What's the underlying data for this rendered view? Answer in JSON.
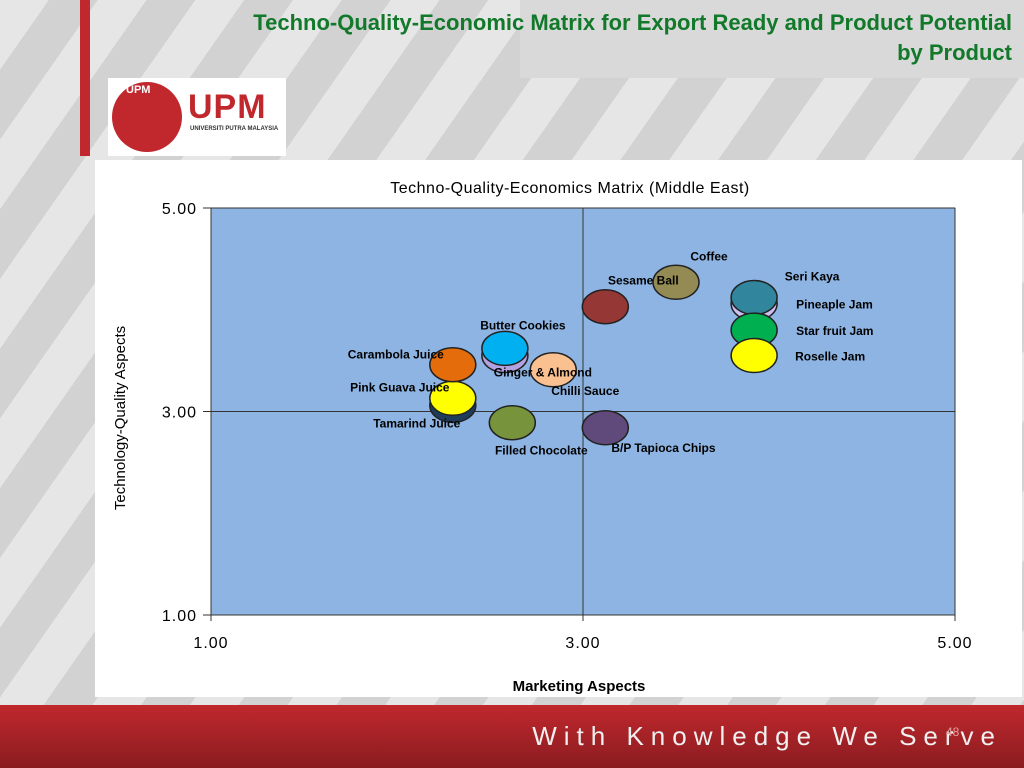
{
  "slide": {
    "title": "Techno-Quality-Economic Matrix for Export Ready and Product Potential by Product",
    "logo_emblem": "UPM",
    "logo_text": "UPM",
    "logo_subtext": "UNIVERSITI PUTRA MALAYSIA",
    "footer": "With Knowledge We Serve",
    "page_number": "48"
  },
  "chart_data": {
    "type": "scatter",
    "title": "Techno-Quality-Economics Matrix (Middle East)",
    "x_label": "Marketing Aspects",
    "y_label": "Technology-Quality Aspects",
    "xlim": [
      1,
      5
    ],
    "ylim": [
      1,
      5
    ],
    "xticks": [
      {
        "value": 1,
        "label": "1.00"
      },
      {
        "value": 3,
        "label": "3.00"
      },
      {
        "value": 5,
        "label": "5.00"
      }
    ],
    "yticks": [
      {
        "value": 1,
        "label": "1.00"
      },
      {
        "value": 3,
        "label": "3.00"
      },
      {
        "value": 5,
        "label": "5.00"
      }
    ],
    "grid": true,
    "background": "#8db4e2",
    "series": [
      {
        "name": "Tamarind Juice",
        "color": "#1f3c5a",
        "x": [
          2.3
        ],
        "values": [
          3.06
        ]
      },
      {
        "name": "Pink Guava Juice",
        "color": "#ffff00",
        "x": [
          2.3
        ],
        "values": [
          3.13
        ]
      },
      {
        "name": "Carambola Juice",
        "color": "#e46c0a",
        "x": [
          2.3
        ],
        "values": [
          3.46
        ]
      },
      {
        "name": "Ginger & Almond",
        "color": "#b3a2e0",
        "x": [
          2.58
        ],
        "values": [
          3.55
        ]
      },
      {
        "name": "Butter Cookies",
        "color": "#00b0f0",
        "x": [
          2.58
        ],
        "values": [
          3.62
        ]
      },
      {
        "name": "Chilli Sauce",
        "color": "#fac090",
        "x": [
          2.84
        ],
        "values": [
          3.41
        ]
      },
      {
        "name": "Filled Chocolate",
        "color": "#77933c",
        "x": [
          2.62
        ],
        "values": [
          2.89
        ]
      },
      {
        "name": "B/P Tapioca Chips",
        "color": "#604a7b",
        "x": [
          3.12
        ],
        "values": [
          2.84
        ]
      },
      {
        "name": "Sesame Ball",
        "color": "#953735",
        "x": [
          3.12
        ],
        "values": [
          4.03
        ]
      },
      {
        "name": "Coffee",
        "color": "#948a54",
        "x": [
          3.5
        ],
        "values": [
          4.27
        ]
      },
      {
        "name": "Pineaple Jam",
        "color": "#ccc0f0",
        "x": [
          3.92
        ],
        "values": [
          4.06
        ]
      },
      {
        "name": "Seri Kaya",
        "color": "#31859c",
        "x": [
          3.92
        ],
        "values": [
          4.12
        ]
      },
      {
        "name": "Star fruit Jam",
        "color": "#00b050",
        "x": [
          3.92
        ],
        "values": [
          3.8
        ]
      },
      {
        "name": "Roselle Jam",
        "color": "#ffff00",
        "x": [
          3.92
        ],
        "values": [
          3.55
        ]
      }
    ]
  }
}
